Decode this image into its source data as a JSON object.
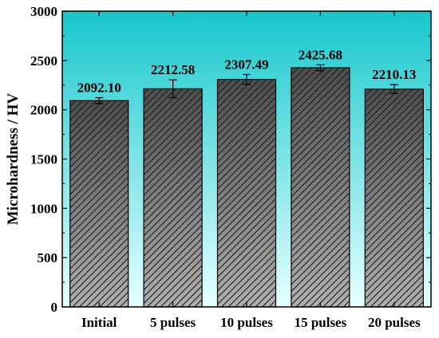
{
  "chart_data": {
    "type": "bar",
    "title": "",
    "xlabel": "",
    "ylabel": "Microhardness / HV",
    "categories": [
      "Initial",
      "5 pulses",
      "10 pulses",
      "15 pulses",
      "20 pulses"
    ],
    "values": [
      2092.1,
      2212.58,
      2307.49,
      2425.68,
      2210.13
    ],
    "value_labels": [
      "2092.10",
      "2212.58",
      "2307.49",
      "2425.68",
      "2210.13"
    ],
    "errors": [
      30,
      90,
      50,
      30,
      45
    ],
    "ylim": [
      0,
      3000
    ],
    "yticks": [
      0,
      500,
      1000,
      1500,
      2000,
      2500,
      3000
    ],
    "grid": false,
    "colors": {
      "background_top": "#17c7cc",
      "background_bottom": "#e6ffff",
      "bar_fill_top": "#4d4d4d",
      "bar_fill_bottom": "#b0b0b0",
      "hatch": "#1a1a1a",
      "axis": "#000000"
    }
  }
}
